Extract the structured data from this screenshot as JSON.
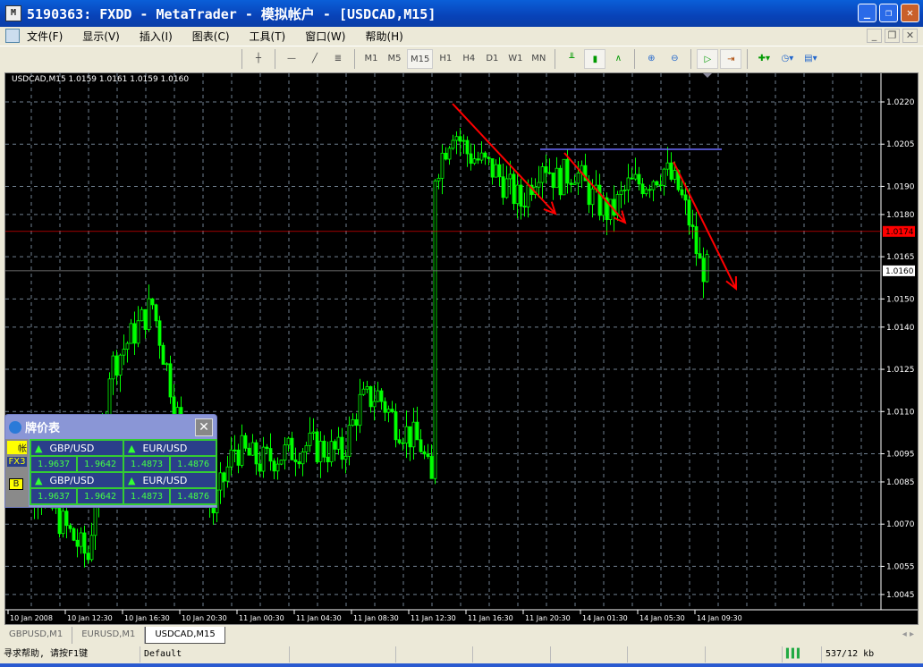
{
  "window": {
    "title": "5190363: FXDD - MetaTrader - 模拟帐户 - [USDCAD,M15]"
  },
  "menu": [
    "文件(F)",
    "显示(V)",
    "插入(I)",
    "图表(C)",
    "工具(T)",
    "窗口(W)",
    "帮助(H)"
  ],
  "toolbar": {
    "timeframes": [
      "M1",
      "M5",
      "M15",
      "H1",
      "H4",
      "D1",
      "W1",
      "MN"
    ],
    "active": "M15"
  },
  "chart": {
    "info": "USDCAD,M15  1.0159 1.0161 1.0159 1.0160",
    "price_ticks": [
      "1.0220",
      "1.0205",
      "1.0190",
      "1.0180",
      "1.0165",
      "1.0150",
      "1.0140",
      "1.0125",
      "1.0110",
      "1.0095",
      "1.0085",
      "1.0070",
      "1.0055",
      "1.0045"
    ],
    "time_ticks": [
      "10 Jan 2008",
      "10 Jan 12:30",
      "10 Jan 16:30",
      "10 Jan 20:30",
      "11 Jan 00:30",
      "11 Jan 04:30",
      "11 Jan 08:30",
      "11 Jan 12:30",
      "11 Jan 16:30",
      "11 Jan 20:30",
      "14 Jan 01:30",
      "14 Jan 05:30",
      "14 Jan 09:30"
    ],
    "ask_label": "1.0174",
    "bid_label": "1.0160",
    "colors": {
      "candle": "#00ff00",
      "grid": "#708090",
      "ask": "#ff0000",
      "arrows": "#ff0000",
      "hline": "#6a6aff"
    }
  },
  "chart_data": {
    "type": "candlestick",
    "ylim": [
      1.0035,
      1.023
    ],
    "path": [
      [
        0,
        1.009
      ],
      [
        8,
        1.0082
      ],
      [
        22,
        1.0058
      ],
      [
        28,
        1.0125
      ],
      [
        40,
        1.0148
      ],
      [
        48,
        1.0103
      ],
      [
        57,
        1.0075
      ],
      [
        63,
        1.0097
      ],
      [
        70,
        1.0092
      ],
      [
        83,
        1.0098
      ],
      [
        93,
        1.0095
      ],
      [
        98,
        1.0113
      ],
      [
        103,
        1.0116
      ],
      [
        108,
        1.0106
      ],
      [
        115,
        1.0098
      ],
      [
        118,
        1.0084
      ],
      [
        119,
        1.0195
      ],
      [
        124,
        1.0211
      ],
      [
        128,
        1.0202
      ],
      [
        136,
        1.0195
      ],
      [
        143,
        1.0184
      ],
      [
        149,
        1.02
      ],
      [
        153,
        1.0192
      ],
      [
        158,
        1.0196
      ],
      [
        163,
        1.0186
      ],
      [
        168,
        1.018
      ],
      [
        173,
        1.019
      ],
      [
        178,
        1.0192
      ],
      [
        183,
        1.0196
      ],
      [
        187,
        1.0189
      ],
      [
        190,
        1.0178
      ],
      [
        193,
        1.0162
      ],
      [
        195,
        1.016
      ]
    ]
  },
  "quote_window": {
    "title": "牌价表",
    "side": [
      "帐",
      "FX3",
      "B"
    ],
    "rows": [
      {
        "a": "GBP/USD",
        "a_bid": "1.9637",
        "a_ask": "1.9642",
        "b": "EUR/USD",
        "b_bid": "1.4873",
        "b_ask": "1.4876"
      },
      {
        "a": "GBP/USD",
        "a_bid": "1.9637",
        "a_ask": "1.9642",
        "b": "EUR/USD",
        "b_bid": "1.4873",
        "b_ask": "1.4876"
      }
    ]
  },
  "tabs": [
    "GBPUSD,M1",
    "EURUSD,M1",
    "USDCAD,M15"
  ],
  "status": {
    "help": "寻求帮助, 请按F1键",
    "profile": "Default",
    "traffic": "537/12 kb"
  }
}
